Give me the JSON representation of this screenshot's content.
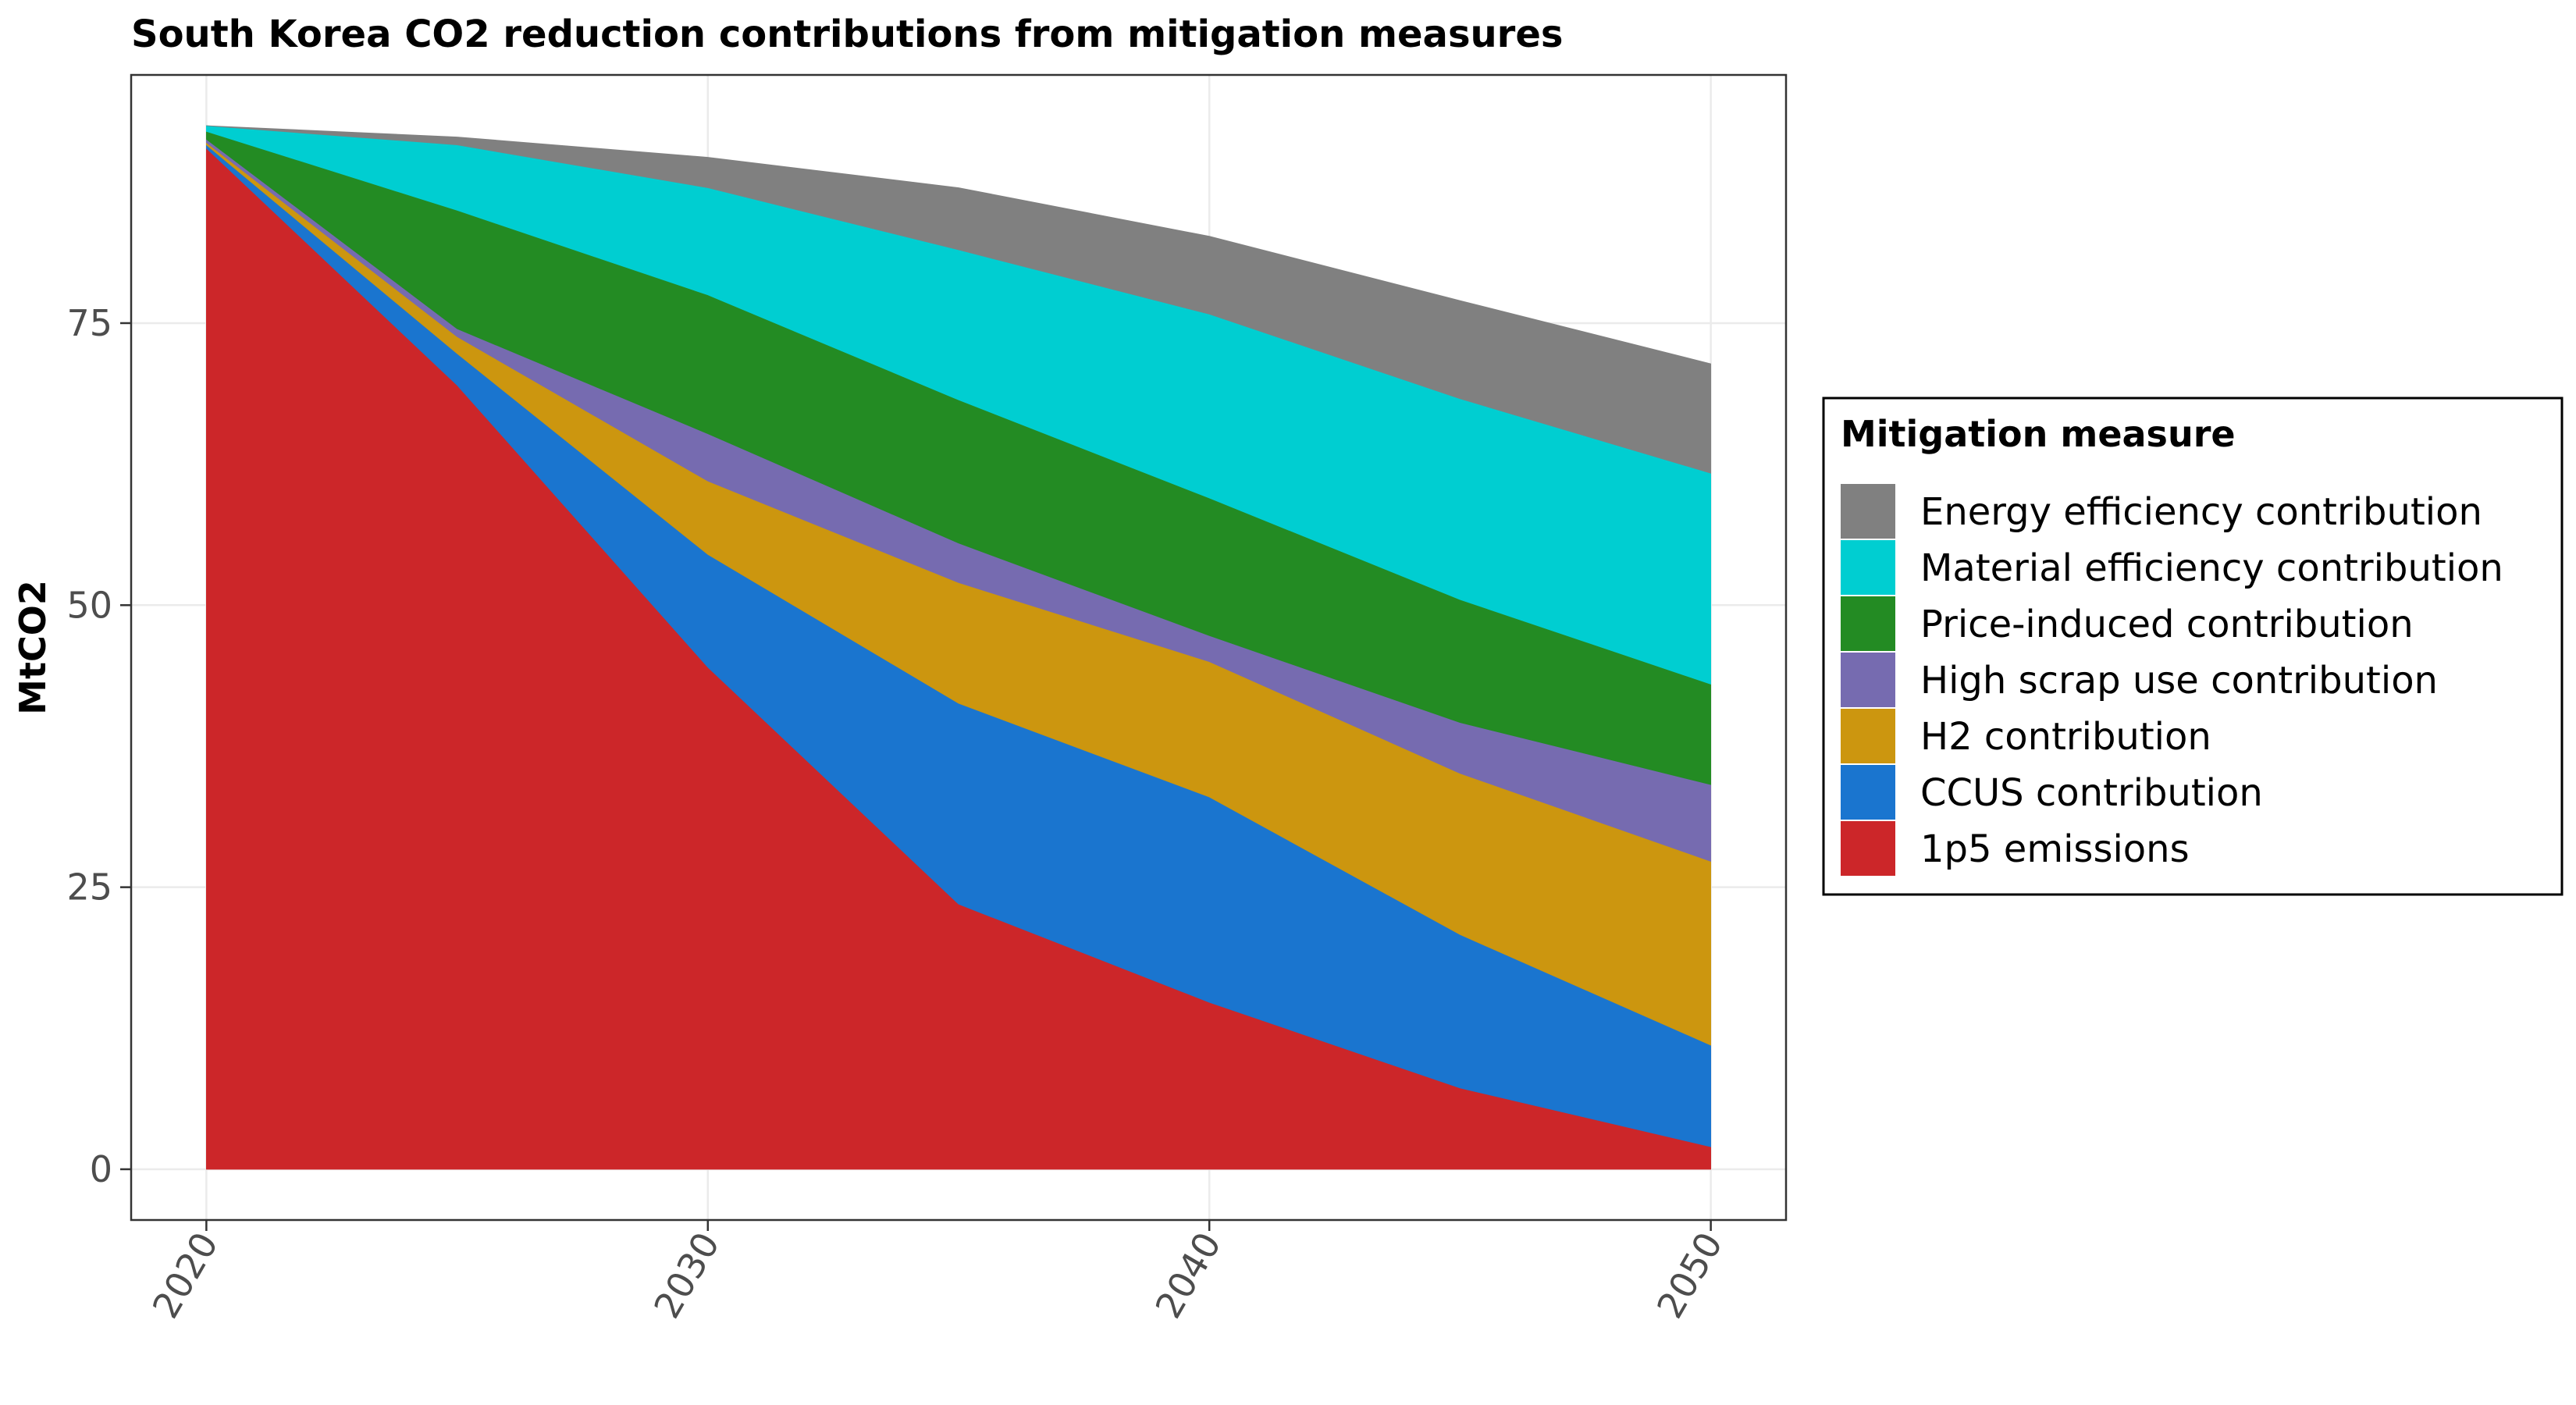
{
  "chart_data": {
    "type": "area",
    "stacked": true,
    "title": "South Korea CO2 reduction contributions from mitigation measures",
    "xlabel": "",
    "ylabel": "MtCO2",
    "x": [
      2020,
      2025,
      2030,
      2035,
      2040,
      2045,
      2050
    ],
    "xticks": [
      "2020",
      "2030",
      "2040",
      "2050"
    ],
    "yticks": [
      "0",
      "25",
      "50",
      "75"
    ],
    "xlim": [
      2018.5,
      2051.5
    ],
    "ylim": [
      -4.5,
      97
    ],
    "grid": true,
    "legend": {
      "title": "Mitigation measure",
      "position": "right"
    },
    "series": [
      {
        "name": "1p5 emissions",
        "color": "#CC2629",
        "values": [
          90.5,
          69.5,
          44.5,
          23.5,
          14.8,
          7.2,
          2.0
        ]
      },
      {
        "name": "CCUS contribution",
        "color": "#1A75CF",
        "values": [
          0.3,
          2.8,
          10.0,
          17.8,
          18.2,
          13.6,
          9.0
        ]
      },
      {
        "name": "H2 contribution",
        "color": "#CC960F",
        "values": [
          0.2,
          1.5,
          6.5,
          10.7,
          12.0,
          14.3,
          16.3
        ]
      },
      {
        "name": "High scrap use contribution",
        "color": "#766BB0",
        "values": [
          0.3,
          0.7,
          4.2,
          3.5,
          2.3,
          4.5,
          6.8
        ]
      },
      {
        "name": "Price-induced contribution",
        "color": "#238B23",
        "values": [
          0.7,
          10.5,
          12.3,
          12.7,
          12.2,
          10.9,
          8.9
        ]
      },
      {
        "name": "Material efficiency contribution",
        "color": "#00CED1",
        "values": [
          0.5,
          5.8,
          9.5,
          13.3,
          16.3,
          17.8,
          18.7
        ]
      },
      {
        "name": "Energy efficiency contribution",
        "color": "#808080",
        "values": [
          0.0,
          0.7,
          2.7,
          5.5,
          6.9,
          8.7,
          9.7
        ]
      }
    ]
  }
}
